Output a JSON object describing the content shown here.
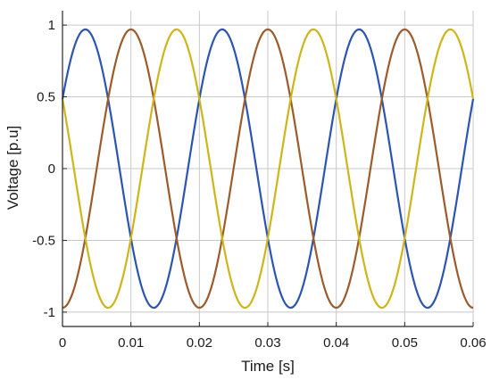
{
  "chart_data": {
    "type": "line",
    "title": "",
    "xlabel": "Time [s]",
    "ylabel": "Voltage [p.u]",
    "xlim": [
      0,
      0.06
    ],
    "ylim": [
      -1.1,
      1.1
    ],
    "x_ticks": [
      0,
      0.01,
      0.02,
      0.03,
      0.04,
      0.05,
      0.06
    ],
    "x_tick_labels": [
      "0",
      "0.01",
      "0.02",
      "0.03",
      "0.04",
      "0.05",
      "0.06"
    ],
    "y_ticks": [
      1,
      0.5,
      0,
      -0.5,
      -1
    ],
    "y_tick_labels": [
      "1",
      "0.5",
      "0",
      "-0.5",
      "-1"
    ],
    "grid": true,
    "sampling": {
      "x_start": 0,
      "x_end": 0.06,
      "step": 0.00025
    },
    "series": [
      {
        "amplitude": 0.97,
        "frequency_hz": 50,
        "phase_deg": 30,
        "color": "#2c55b1",
        "x": [
          0,
          0.0033,
          0.0083,
          0.0133,
          0.0183,
          0.0233,
          0.0283,
          0.0333,
          0.0383,
          0.0433,
          0.0483,
          0.0533,
          0.0583,
          0.06
        ],
        "y": [
          0.485,
          0.97,
          0,
          -0.97,
          0,
          0.97,
          0,
          -0.97,
          0,
          0.97,
          0,
          -0.97,
          0,
          0.485
        ]
      },
      {
        "amplitude": 0.97,
        "frequency_hz": 50,
        "phase_deg": -90,
        "color": "#9b5b2b",
        "x": [
          0,
          0.005,
          0.01,
          0.015,
          0.02,
          0.025,
          0.03,
          0.035,
          0.04,
          0.045,
          0.05,
          0.055,
          0.06
        ],
        "y": [
          -0.97,
          0,
          0.97,
          0,
          -0.97,
          0,
          0.97,
          0,
          -0.97,
          0,
          0.97,
          0,
          -0.97
        ]
      },
      {
        "amplitude": 0.97,
        "frequency_hz": 50,
        "phase_deg": 150,
        "color": "#cdb51a",
        "x": [
          0,
          0.0017,
          0.0067,
          0.0117,
          0.0167,
          0.0217,
          0.0267,
          0.0317,
          0.0367,
          0.0417,
          0.0467,
          0.0517,
          0.0567,
          0.06
        ],
        "y": [
          0.485,
          0,
          -0.97,
          0,
          0.97,
          0,
          -0.97,
          0,
          0.97,
          0,
          -0.97,
          0,
          0.97,
          0.485
        ]
      }
    ]
  }
}
